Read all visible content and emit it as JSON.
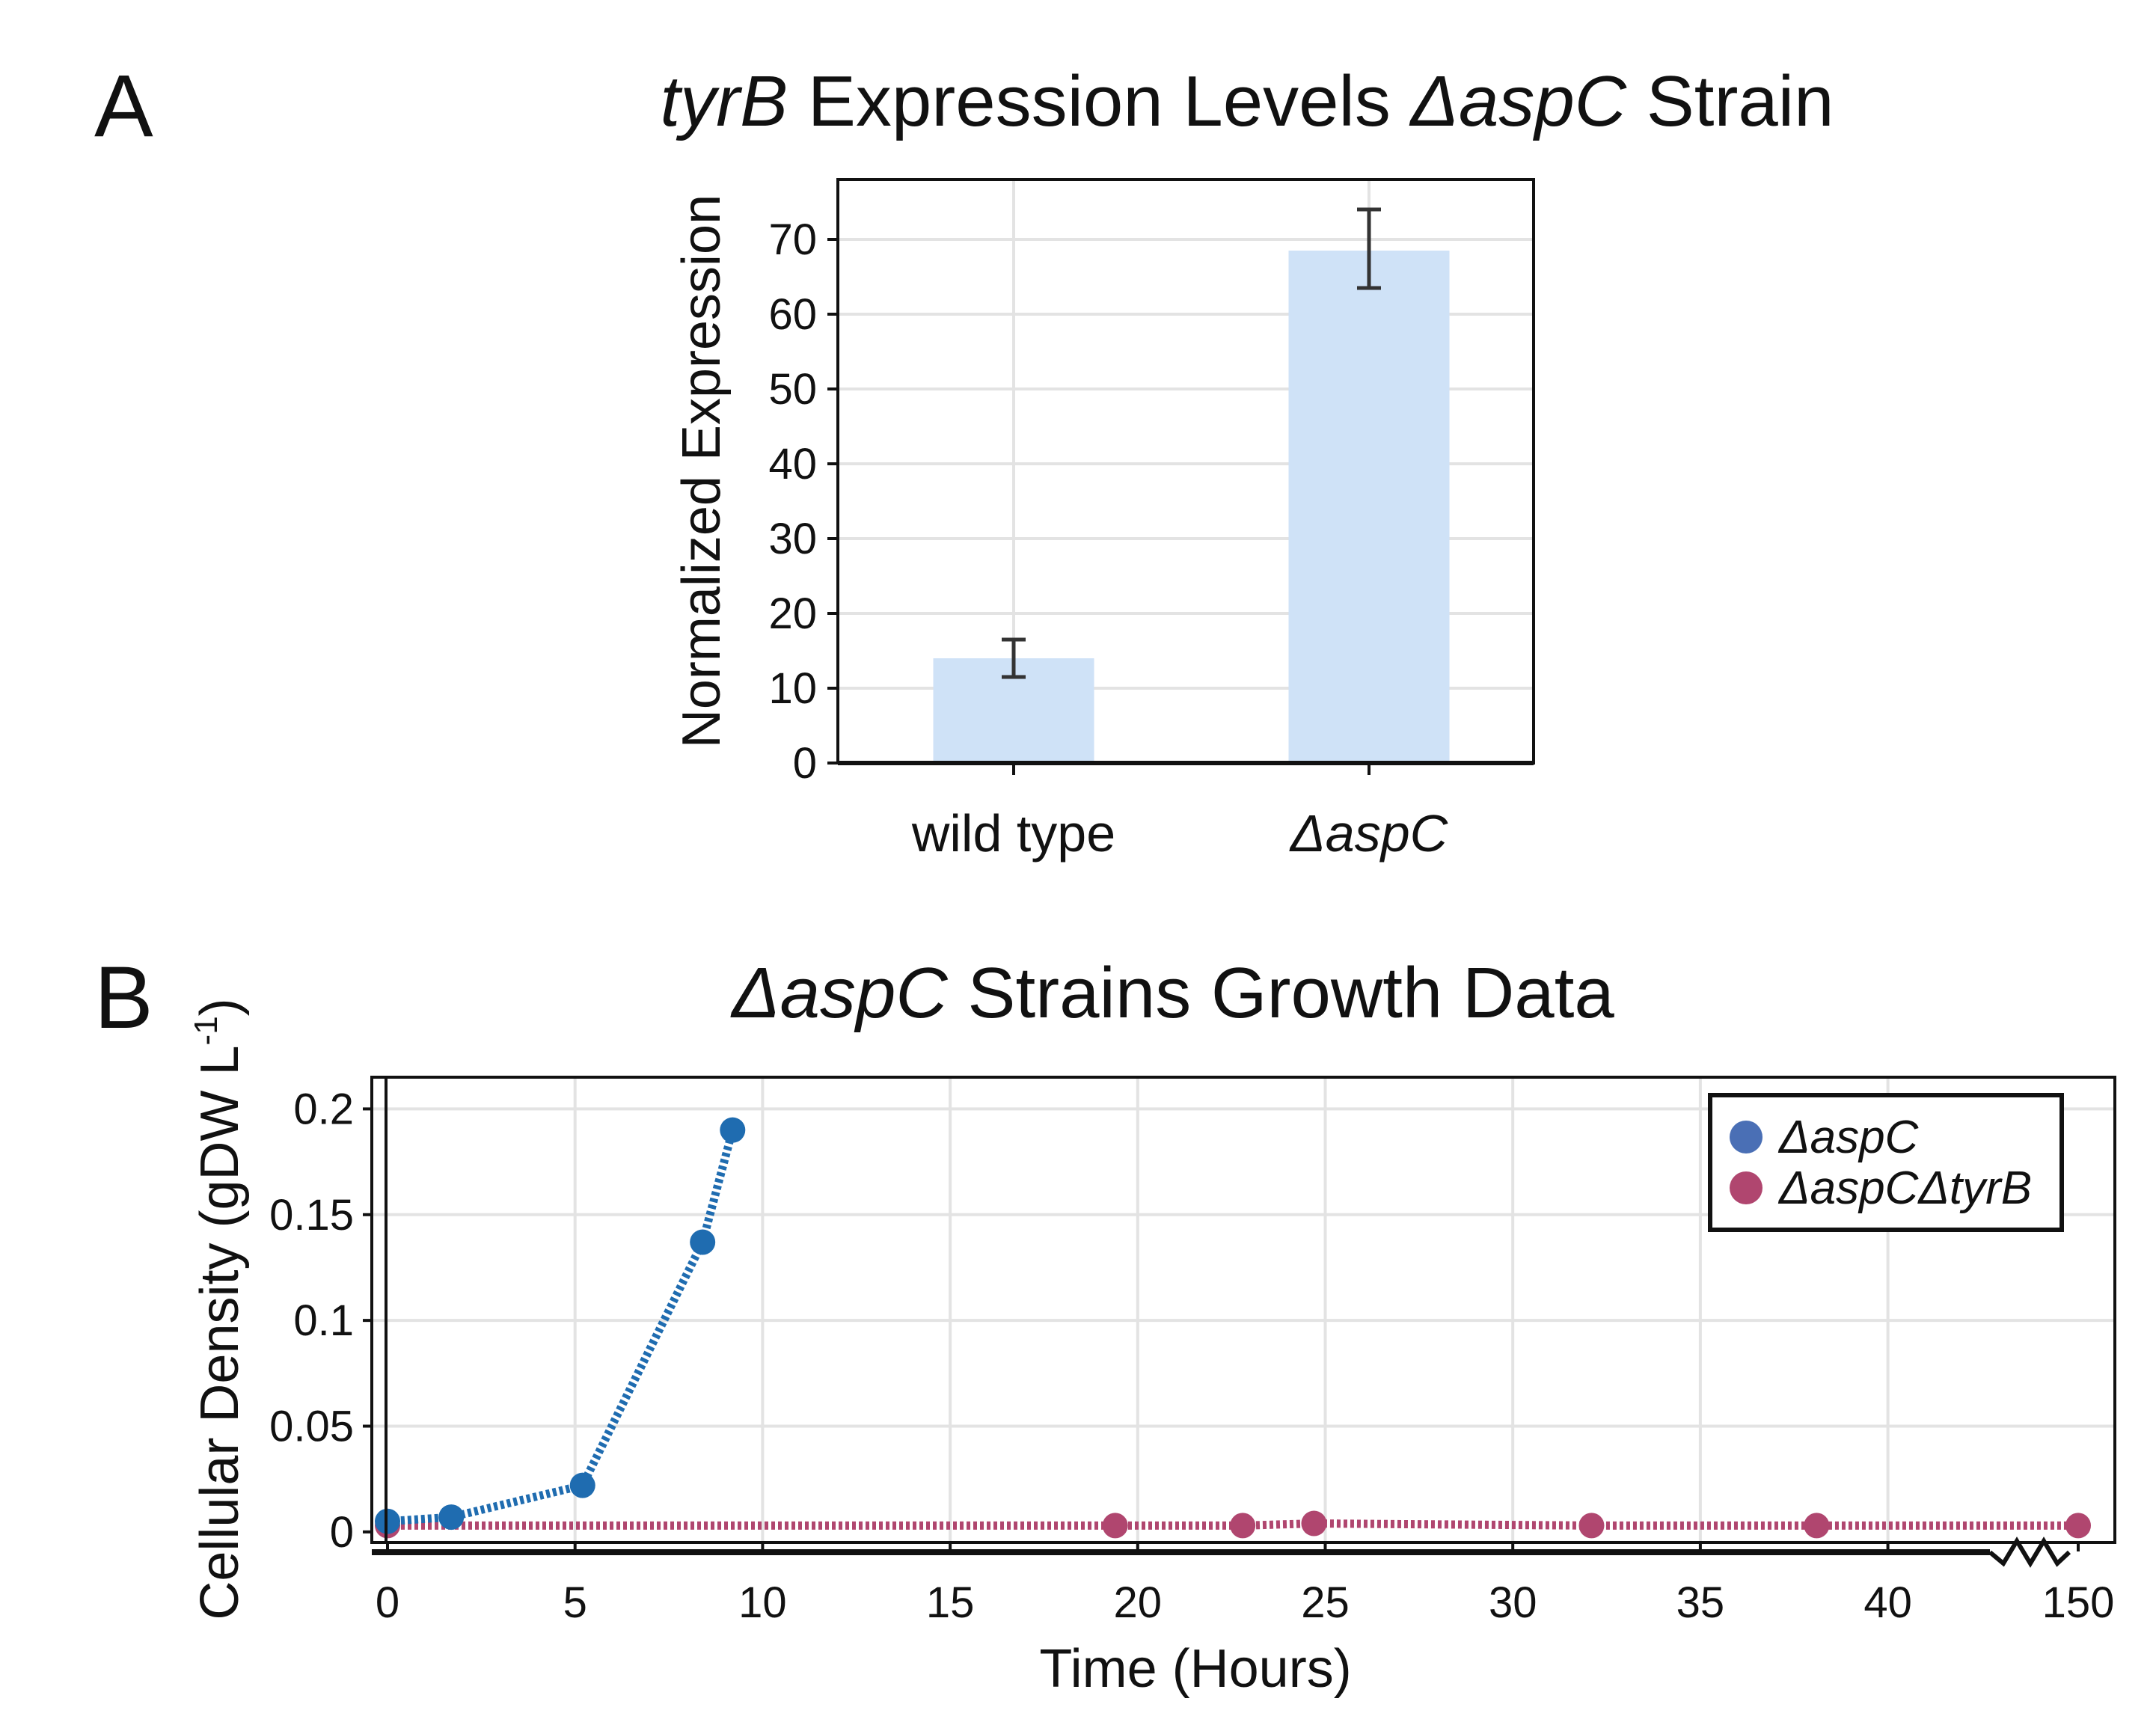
{
  "panel_a": {
    "letter": "A"
  },
  "panel_b": {
    "letter": "B"
  },
  "chart_data": [
    {
      "type": "bar",
      "title_parts": [
        {
          "text": "tyrB",
          "italic": true
        },
        {
          "text": " Expression Levels ",
          "italic": false
        },
        {
          "text": "ΔaspC",
          "italic": true
        },
        {
          "text": " Strain",
          "italic": false
        }
      ],
      "xlabel": "",
      "ylabel": "Normalized Expression",
      "categories": [
        "wild type",
        "ΔaspC"
      ],
      "categories_italic": [
        false,
        true
      ],
      "values": [
        14,
        68.5
      ],
      "error": [
        [
          11.5,
          16.5
        ],
        [
          63.5,
          74
        ]
      ],
      "ylim": [
        0,
        78
      ],
      "yticks": [
        0,
        10,
        20,
        30,
        40,
        50,
        60,
        70
      ],
      "grid": true,
      "bar_color": "#cfe2f7",
      "error_color": "#333333"
    },
    {
      "type": "line",
      "title_parts": [
        {
          "text": "ΔaspC",
          "italic": true
        },
        {
          "text": " Strains Growth Data",
          "italic": false
        }
      ],
      "xlabel": "Time (Hours)",
      "ylabel": "Cellular Density (gDW L",
      "ylabel_sup": "-1",
      "ylabel_close": ")",
      "xticks": [
        "0",
        "5",
        "10",
        "15",
        "20",
        "25",
        "30",
        "35",
        "40",
        "150"
      ],
      "yticks": [
        "0",
        "0.05",
        "0.1",
        "0.15",
        "0.2"
      ],
      "ylim": [
        -0.005,
        0.215
      ],
      "axis_break": "between 40 and 150",
      "grid": true,
      "legend_position": "top-right",
      "series": [
        {
          "name": "ΔaspC",
          "color": "#1f6cb0",
          "legend_color": "#4a6fb5",
          "x": [
            0,
            1.7,
            5.2,
            8.4,
            9.2
          ],
          "y": [
            0.005,
            0.007,
            0.022,
            0.137,
            0.19
          ]
        },
        {
          "name": "ΔaspCΔtyrB",
          "color": "#b0466f",
          "legend_color": "#b0466f",
          "x": [
            0,
            19.4,
            22.8,
            24.7,
            32.1,
            38.1,
            150
          ],
          "y": [
            0.003,
            0.003,
            0.003,
            0.004,
            0.003,
            0.003,
            0.003
          ]
        }
      ]
    }
  ]
}
